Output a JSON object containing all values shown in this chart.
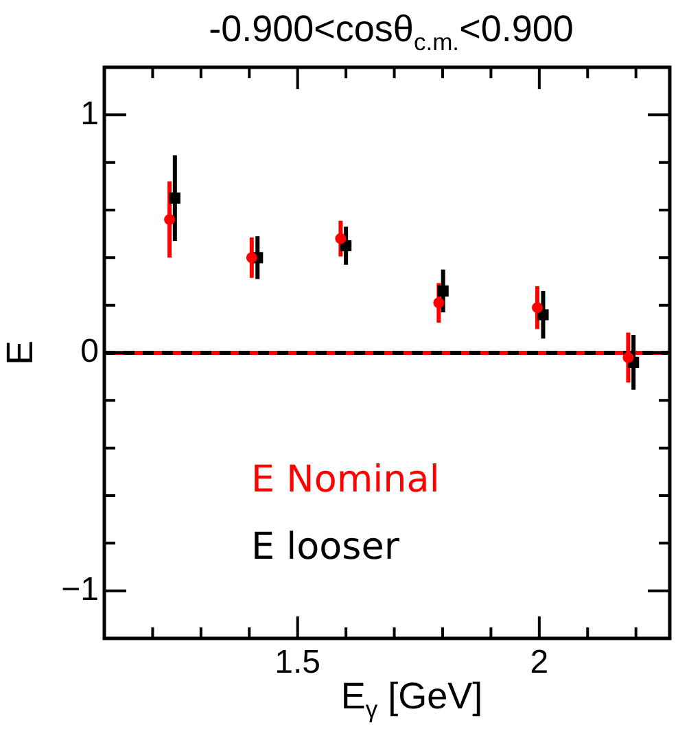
{
  "chart_data": {
    "type": "scatter",
    "title": "-0.900<cosθ$_{c.m.}$<0.900",
    "xlabel": "E$_{γ}$ [GeV]",
    "ylabel": "E",
    "xlim": [
      1.1,
      2.27
    ],
    "ylim": [
      -1.2,
      1.2
    ],
    "xticks": [
      {
        "value": 1.2,
        "label": null
      },
      {
        "value": 1.3,
        "label": null
      },
      {
        "value": 1.4,
        "label": null
      },
      1.5,
      {
        "value": 1.6,
        "label": null
      },
      {
        "value": 1.7,
        "label": null
      },
      {
        "value": 1.8,
        "label": null
      },
      {
        "value": 1.9,
        "label": null
      },
      2,
      {
        "value": 2.1,
        "label": null
      },
      {
        "value": 2.2,
        "label": null
      }
    ],
    "yticks": [
      {
        "value": -1,
        "label": "−1"
      },
      {
        "value": -0.8,
        "label": null
      },
      {
        "value": -0.6,
        "label": null
      },
      {
        "value": -0.4,
        "label": null
      },
      {
        "value": -0.2,
        "label": null
      },
      0,
      {
        "value": 0.2,
        "label": null
      },
      {
        "value": 0.4,
        "label": null
      },
      {
        "value": 0.6,
        "label": null
      },
      {
        "value": 0.8,
        "label": null
      },
      1
    ],
    "grid": false,
    "legend": "bottom left",
    "series": [
      {
        "name": "E Nominal",
        "color": "#ff0000",
        "marker": "circle",
        "x": [
          1.235,
          1.405,
          1.589,
          1.792,
          1.996,
          2.184
        ],
        "values": [
          0.56,
          0.4,
          0.48,
          0.21,
          0.19,
          -0.02
        ],
        "errors": [
          0.16,
          0.085,
          0.075,
          0.083,
          0.09,
          0.105
        ]
      },
      {
        "name": "E looser",
        "color": "#000000",
        "marker": "square",
        "x": [
          1.246,
          1.417,
          1.6,
          1.801,
          2.008,
          2.195
        ],
        "values": [
          0.65,
          0.4,
          0.45,
          0.26,
          0.16,
          -0.04
        ],
        "errors": [
          0.18,
          0.09,
          0.08,
          0.09,
          0.1,
          0.115
        ]
      }
    ],
    "ref_lines": [
      {
        "axis": "y",
        "value": 0,
        "color": "#ff0000",
        "line_style": "solid"
      },
      {
        "axis": "y",
        "value": 0,
        "color": "#000000",
        "line_style": "dashed"
      }
    ]
  }
}
